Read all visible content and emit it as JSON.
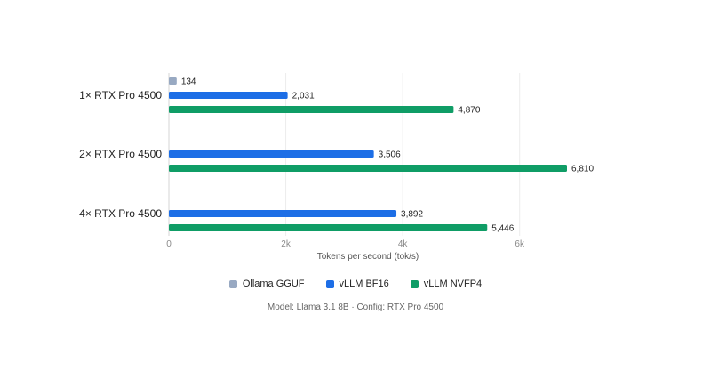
{
  "chart_data": {
    "type": "bar",
    "orientation": "horizontal",
    "categories": [
      "1× RTX Pro 4500",
      "2× RTX Pro 4500",
      "4× RTX Pro 4500"
    ],
    "series": [
      {
        "name": "Ollama GGUF",
        "color": "#98a9c2",
        "values": [
          134,
          null,
          null
        ],
        "labels": [
          "134",
          "",
          ""
        ]
      },
      {
        "name": "vLLM BF16",
        "color": "#1d6ee6",
        "values": [
          2031,
          3506,
          3892
        ],
        "labels": [
          "2,031",
          "3,506",
          "3,892"
        ]
      },
      {
        "name": "vLLM NVFP4",
        "color": "#0f9d66",
        "values": [
          4870,
          6810,
          5446
        ],
        "labels": [
          "4,870",
          "6,810",
          "5,446"
        ]
      }
    ],
    "xlabel": "Tokens per second (tok/s)",
    "xlim": [
      0,
      6810
    ],
    "xticks": [
      0,
      2000,
      4000,
      6000
    ],
    "xtick_labels": [
      "0",
      "2k",
      "4k",
      "6k"
    ],
    "grid": true,
    "legend_position": "bottom",
    "caption": "Model: Llama 3.1 8B · Config: RTX Pro 4500"
  }
}
